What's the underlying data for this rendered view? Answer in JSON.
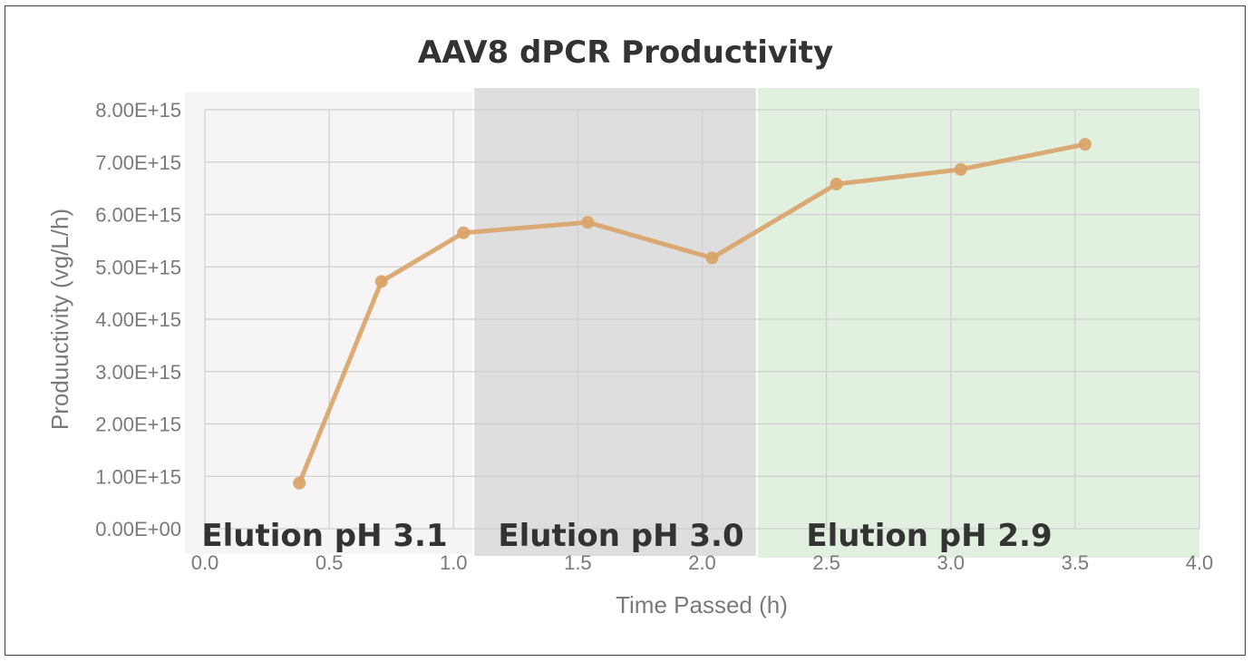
{
  "chart_data": {
    "type": "scatter",
    "title": "AAV8 dPCR Productivity",
    "xlabel": "Time Passed (h)",
    "ylabel": "Produuctivity (vg/L/h)",
    "xlim": [
      0,
      4
    ],
    "ylim": [
      0,
      8000000000000000.0
    ],
    "x_ticks": [
      "0.0",
      "0.5",
      "1.0",
      "1.5",
      "2.0",
      "2.5",
      "3.0",
      "3.5",
      "4.0"
    ],
    "x_tick_values": [
      0,
      0.5,
      1.0,
      1.5,
      2.0,
      2.5,
      3.0,
      3.5,
      4.0
    ],
    "y_ticks": [
      "0.00E+00",
      "1.00E+15",
      "2.00E+15",
      "3.00E+15",
      "4.00E+15",
      "5.00E+15",
      "6.00E+15",
      "7.00E+15",
      "8.00E+15"
    ],
    "y_tick_values": [
      0,
      1000000000000000.0,
      2000000000000000.0,
      3000000000000000.0,
      4000000000000000.0,
      5000000000000000.0,
      6000000000000000.0,
      7000000000000000.0,
      8000000000000000.0
    ],
    "grid": true,
    "legend": "none",
    "series": [
      {
        "color": "#d9a46a",
        "x": [
          0.38,
          0.71,
          1.04,
          1.54,
          2.04,
          2.54,
          3.04,
          3.54
        ],
        "y": [
          870000000000000.0,
          4720000000000000.0,
          5650000000000000.0,
          5850000000000000.0,
          5170000000000000.0,
          6580000000000000.0,
          6860000000000000.0,
          7340000000000000.0
        ]
      }
    ],
    "regions": [
      {
        "label": "Elution pH 3.1",
        "x_start": -0.08,
        "x_end": 1.08,
        "color": "#f6f4f5"
      },
      {
        "label": "Elution pH 3.0",
        "x_start": 1.08,
        "x_end": 2.22,
        "color": "#dedede"
      },
      {
        "label": "Elution pH 2.9",
        "x_start": 2.22,
        "x_end": 4.0,
        "color": "#e2f0e0"
      }
    ]
  }
}
